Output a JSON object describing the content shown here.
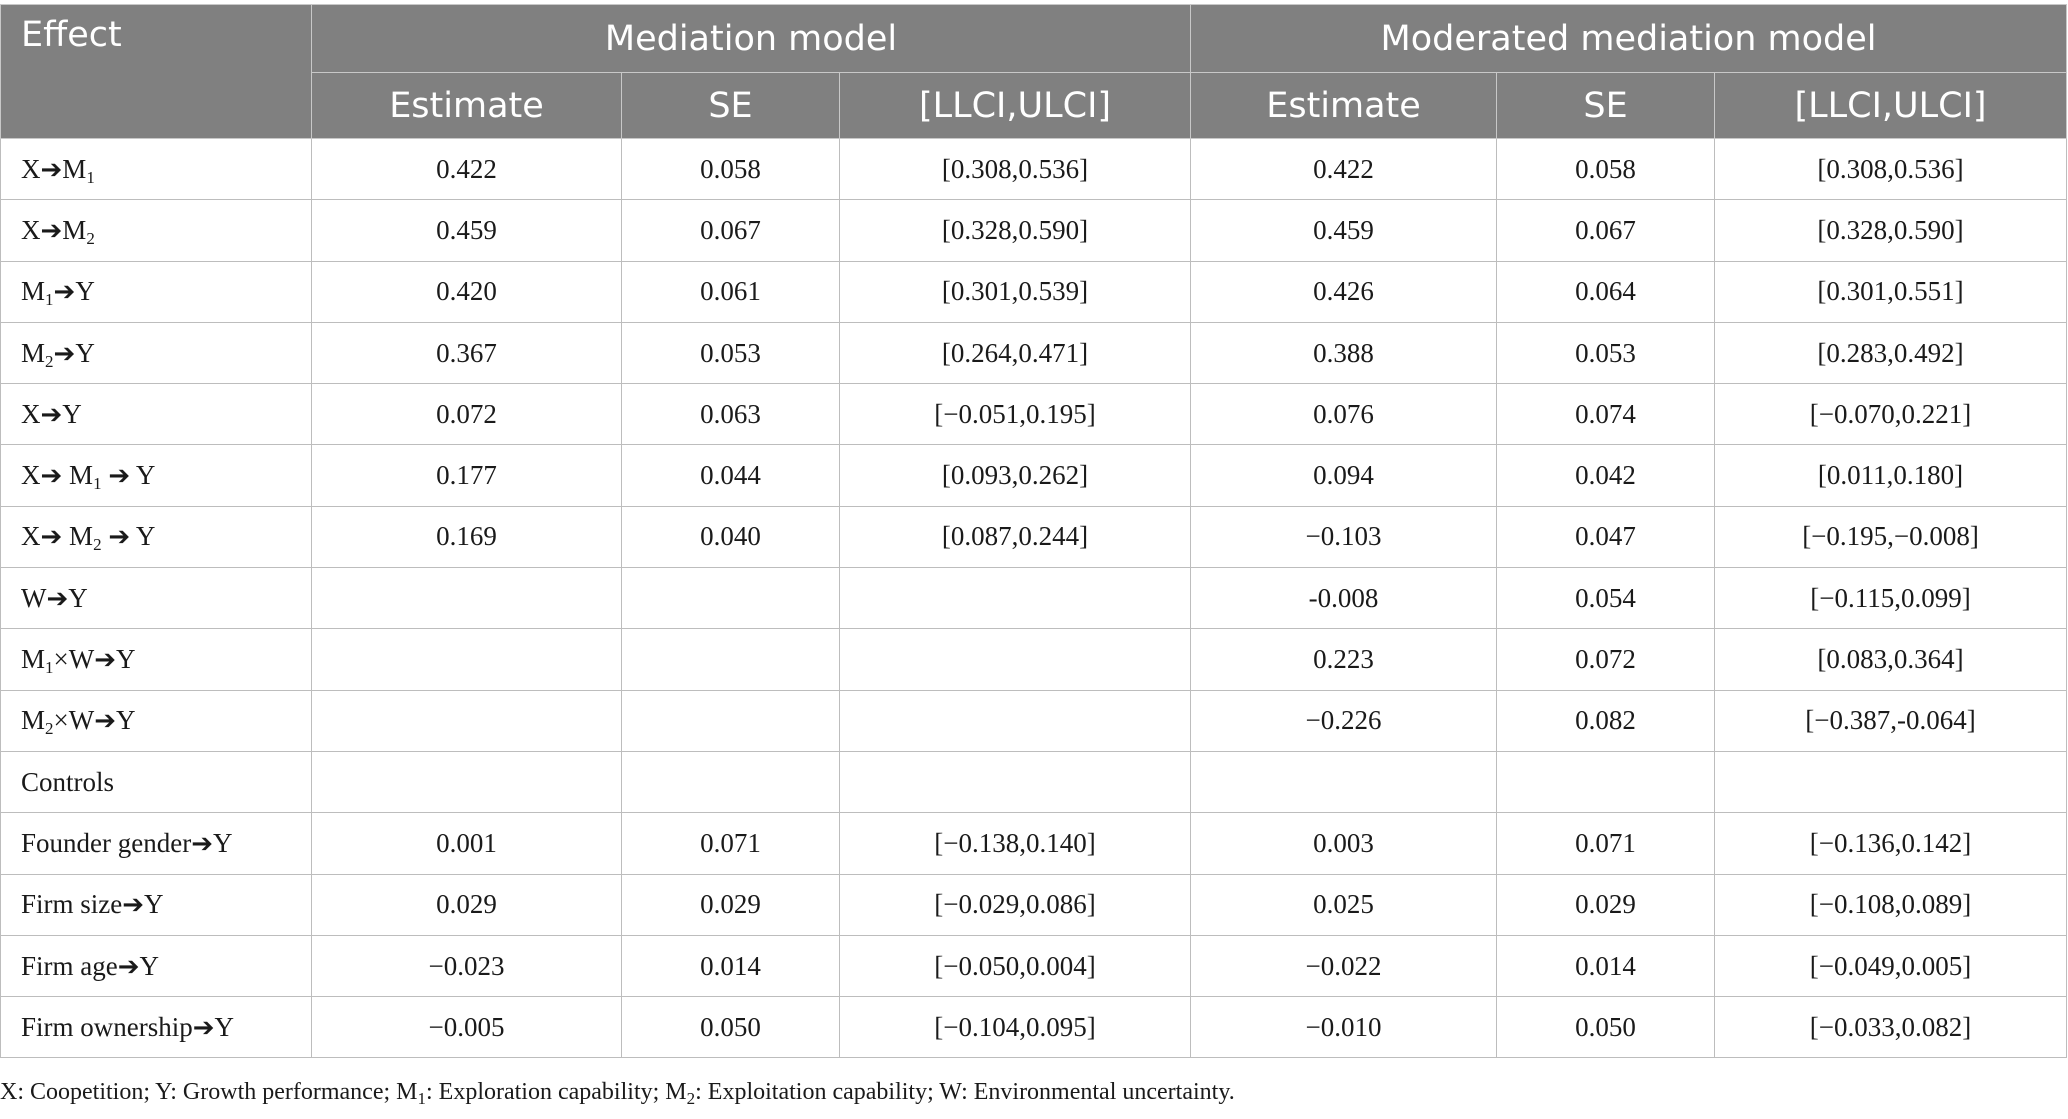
{
  "header": {
    "effect": "Effect",
    "group1": "Mediation model",
    "group2": "Moderated mediation model",
    "sub": [
      "Estimate",
      "SE",
      "[LLCI,ULCI]",
      "Estimate",
      "SE",
      "[LLCI,ULCI]"
    ]
  },
  "rows": [
    {
      "label": [
        [
          "X",
          ""
        ],
        [
          "➔",
          "arrow"
        ],
        [
          "M",
          ""
        ],
        [
          "1",
          "sub"
        ]
      ],
      "cells": [
        "0.422",
        "0.058",
        "[0.308,0.536]",
        "0.422",
        "0.058",
        "[0.308,0.536]"
      ]
    },
    {
      "label": [
        [
          "X",
          ""
        ],
        [
          "➔",
          "arrow"
        ],
        [
          "M",
          ""
        ],
        [
          "2",
          "sub"
        ]
      ],
      "cells": [
        "0.459",
        "0.067",
        "[0.328,0.590]",
        "0.459",
        "0.067",
        "[0.328,0.590]"
      ]
    },
    {
      "label": [
        [
          "M",
          ""
        ],
        [
          "1",
          "sub"
        ],
        [
          "➔",
          "arrow"
        ],
        [
          "Y",
          ""
        ]
      ],
      "cells": [
        "0.420",
        "0.061",
        "[0.301,0.539]",
        "0.426",
        "0.064",
        "[0.301,0.551]"
      ]
    },
    {
      "label": [
        [
          "M",
          ""
        ],
        [
          "2",
          "sub"
        ],
        [
          "➔",
          "arrow"
        ],
        [
          "Y",
          ""
        ]
      ],
      "cells": [
        "0.367",
        "0.053",
        "[0.264,0.471]",
        "0.388",
        "0.053",
        "[0.283,0.492]"
      ]
    },
    {
      "label": [
        [
          "X",
          ""
        ],
        [
          "➔",
          "arrow"
        ],
        [
          "Y",
          ""
        ]
      ],
      "cells": [
        "0.072",
        "0.063",
        "[−0.051,0.195]",
        "0.076",
        "0.074",
        "[−0.070,0.221]"
      ]
    },
    {
      "label": [
        [
          "X",
          ""
        ],
        [
          "➔",
          "arrow"
        ],
        [
          " M",
          ""
        ],
        [
          "1",
          "sub"
        ],
        [
          " ",
          ""
        ],
        [
          "➔",
          "arrow"
        ],
        [
          " Y",
          ""
        ]
      ],
      "cells": [
        "0.177",
        "0.044",
        "[0.093,0.262]",
        "0.094",
        "0.042",
        "[0.011,0.180]"
      ]
    },
    {
      "label": [
        [
          "X",
          ""
        ],
        [
          "➔",
          "arrow"
        ],
        [
          " M",
          ""
        ],
        [
          "2",
          "sub"
        ],
        [
          " ",
          ""
        ],
        [
          "➔",
          "arrow"
        ],
        [
          " Y",
          ""
        ]
      ],
      "cells": [
        "0.169",
        "0.040",
        "[0.087,0.244]",
        "−0.103",
        "0.047",
        "[−0.195,−0.008]"
      ]
    },
    {
      "label": [
        [
          "W",
          ""
        ],
        [
          "➔",
          "arrow"
        ],
        [
          "Y",
          ""
        ]
      ],
      "cells": [
        "",
        "",
        "",
        "-0.008",
        "0.054",
        "[−0.115,0.099]"
      ]
    },
    {
      "label": [
        [
          "M",
          ""
        ],
        [
          "1",
          "sub"
        ],
        [
          "×W",
          ""
        ],
        [
          "➔",
          "arrow"
        ],
        [
          "Y",
          ""
        ]
      ],
      "cells": [
        "",
        "",
        "",
        "0.223",
        "0.072",
        "[0.083,0.364]"
      ]
    },
    {
      "label": [
        [
          "M",
          ""
        ],
        [
          "2",
          "sub"
        ],
        [
          "×W",
          ""
        ],
        [
          "➔",
          "arrow"
        ],
        [
          "Y",
          ""
        ]
      ],
      "cells": [
        "",
        "",
        "",
        "−0.226",
        "0.082",
        "[−0.387,-0.064]"
      ]
    },
    {
      "label": [
        [
          "Controls",
          ""
        ]
      ],
      "cells": [
        "",
        "",
        "",
        "",
        "",
        ""
      ]
    },
    {
      "label": [
        [
          "Founder gender",
          ""
        ],
        [
          "➔",
          "arrow"
        ],
        [
          "Y",
          ""
        ]
      ],
      "cells": [
        "0.001",
        "0.071",
        "[−0.138,0.140]",
        "0.003",
        "0.071",
        "[−0.136,0.142]"
      ]
    },
    {
      "label": [
        [
          "Firm size",
          ""
        ],
        [
          "➔",
          "arrow"
        ],
        [
          "Y",
          ""
        ]
      ],
      "cells": [
        "0.029",
        "0.029",
        "[−0.029,0.086]",
        "0.025",
        "0.029",
        "[−0.108,0.089]"
      ]
    },
    {
      "label": [
        [
          "Firm age",
          ""
        ],
        [
          "➔",
          "arrow"
        ],
        [
          "Y",
          ""
        ]
      ],
      "cells": [
        "−0.023",
        "0.014",
        "[−0.050,0.004]",
        "−0.022",
        "0.014",
        "[−0.049,0.005]"
      ]
    },
    {
      "label": [
        [
          "Firm ownership",
          ""
        ],
        [
          "➔",
          "arrow"
        ],
        [
          "Y",
          ""
        ]
      ],
      "cells": [
        "−0.005",
        "0.050",
        "[−0.104,0.095]",
        "−0.010",
        "0.050",
        "[−0.033,0.082]"
      ]
    }
  ],
  "footnote": [
    [
      "X: Coopetition; Y: Growth performance; M",
      ""
    ],
    [
      "1",
      "sub"
    ],
    [
      ": Exploration capability; M",
      ""
    ],
    [
      "2",
      "sub"
    ],
    [
      ": Exploitation capability; W: Environmental uncertainty.",
      ""
    ]
  ]
}
